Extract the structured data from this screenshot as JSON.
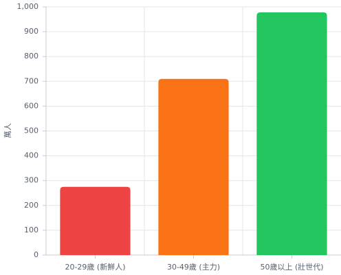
{
  "chart_data": {
    "type": "bar",
    "y_label": "萬人",
    "categories": [
      "20-29歲 (新鮮人)",
      "30-49歲 (主力)",
      "50歲以上 (壯世代)"
    ],
    "values": [
      275,
      710,
      978
    ],
    "colors": [
      "#ef4444",
      "#f97316",
      "#22c55e"
    ],
    "ylim": [
      0,
      1000
    ],
    "yticks": [
      0,
      100,
      200,
      300,
      400,
      500,
      600,
      700,
      800,
      900,
      {
        "value": 1000,
        "label": "1,000"
      }
    ],
    "grid": true
  }
}
